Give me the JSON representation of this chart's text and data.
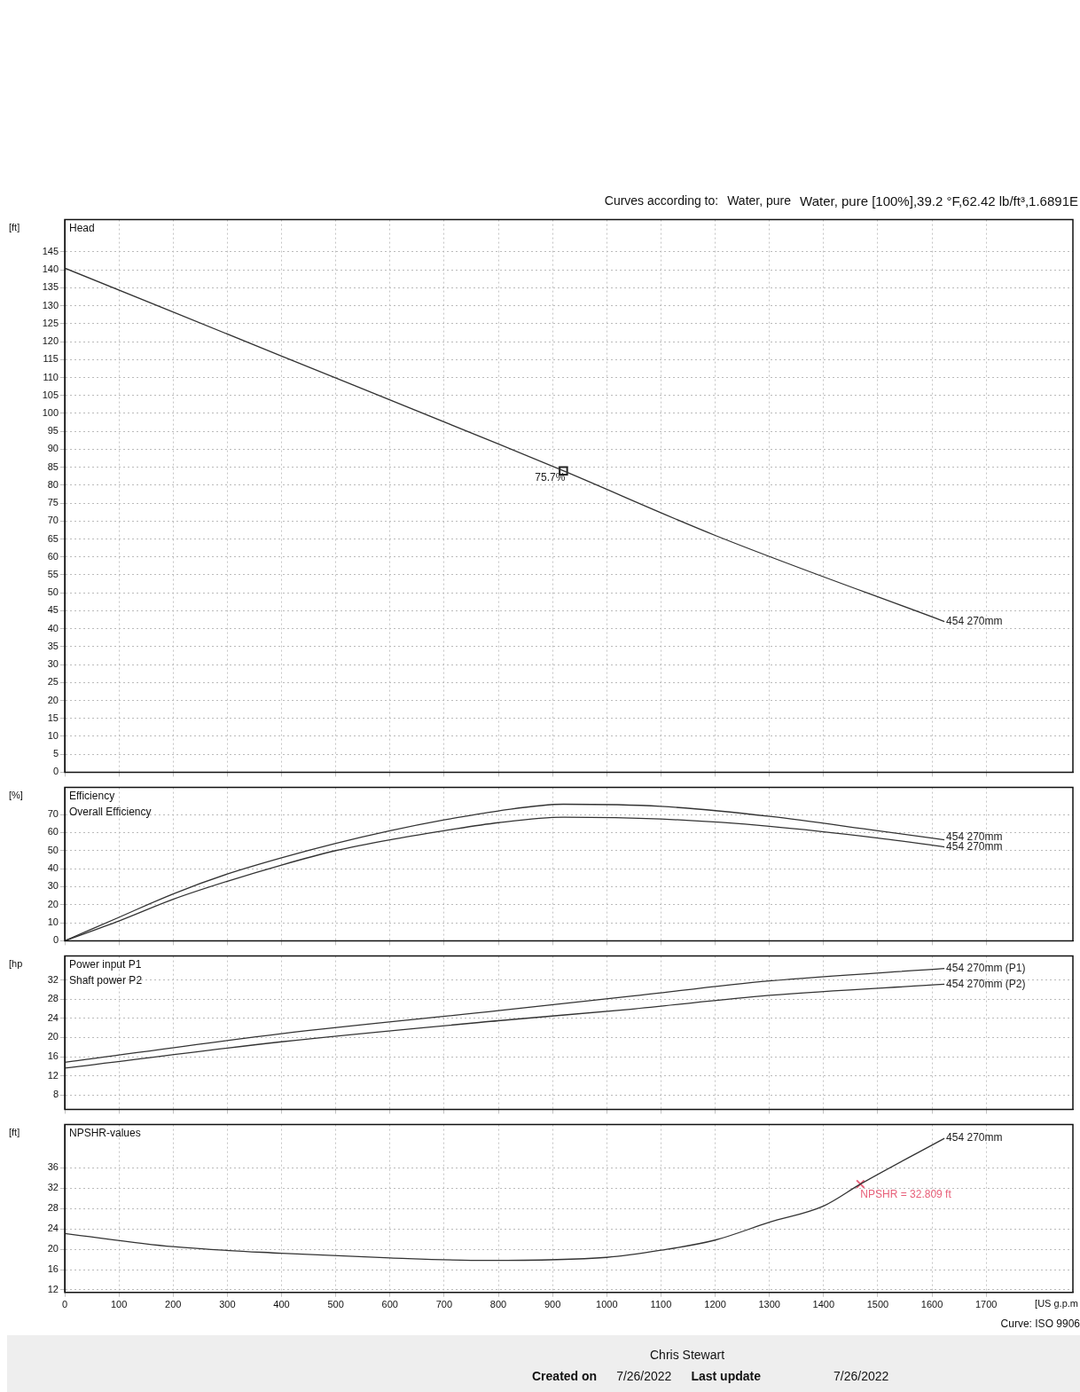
{
  "chart_data": [
    {
      "type": "line",
      "title": "Head",
      "ylabel": "[ft]",
      "xlim": [
        0,
        1860
      ],
      "xticks": [
        0,
        100,
        200,
        300,
        400,
        500,
        600,
        700,
        800,
        900,
        1000,
        1100,
        1200,
        1300,
        1400,
        1500,
        1600,
        1700
      ],
      "ylim": [
        0,
        154
      ],
      "yticks": [
        0,
        5,
        10,
        15,
        20,
        25,
        30,
        35,
        40,
        45,
        50,
        55,
        60,
        65,
        70,
        75,
        80,
        85,
        90,
        95,
        100,
        105,
        110,
        115,
        120,
        125,
        130,
        135,
        140,
        145
      ],
      "grid": true,
      "tick_labels": "y",
      "legend": false,
      "series": [
        {
          "name": "454 270mm",
          "color": "#333333",
          "x": [
            0,
            400,
            800,
            920,
            1200,
            1623
          ],
          "values": [
            140.5,
            116,
            91.5,
            84,
            66,
            42
          ]
        },
        {
          "type": "scatter",
          "marker": "square",
          "color": "#222222",
          "x": [
            920
          ],
          "values": [
            84
          ]
        }
      ],
      "annotations": [
        "Curves according to:",
        "Water, pure",
        "Water, pure [100%],39.2 °F,62.42 lb/ft³,1.6891E",
        {
          "text": "75.7%",
          "x": 920,
          "y": 84
        }
      ]
    },
    {
      "type": "line",
      "title": "Efficiency",
      "subtitle": "Overall Efficiency",
      "ylabel": "[%]",
      "xlim": [
        0,
        1860
      ],
      "xticks": [
        0,
        100,
        200,
        300,
        400,
        500,
        600,
        700,
        800,
        900,
        1000,
        1100,
        1200,
        1300,
        1400,
        1500,
        1600,
        1700
      ],
      "ylim": [
        0,
        85
      ],
      "yticks": [
        0,
        10,
        20,
        30,
        40,
        50,
        60,
        70
      ],
      "grid": true,
      "tick_labels": "y",
      "legend": false,
      "series": [
        {
          "name": "454 270mm",
          "color": "#333333",
          "x": [
            0,
            100,
            200,
            300,
            400,
            500,
            600,
            700,
            800,
            920,
            1100,
            1300,
            1500,
            1623
          ],
          "values": [
            0,
            13,
            26,
            37,
            46,
            54,
            61,
            67,
            72,
            75.7,
            74.5,
            69,
            61,
            56
          ]
        },
        {
          "name": "454 270mm",
          "color": "#333333",
          "x": [
            0,
            100,
            200,
            300,
            400,
            500,
            600,
            700,
            800,
            920,
            1100,
            1300,
            1500,
            1623
          ],
          "values": [
            0,
            11,
            23,
            33,
            42,
            50,
            56,
            61,
            65.5,
            68.5,
            67.5,
            63.5,
            57,
            52
          ]
        }
      ]
    },
    {
      "type": "line",
      "title": "Power input P1",
      "subtitle": "Shaft power P2",
      "ylabel": "[hp",
      "xlim": [
        0,
        1860
      ],
      "xticks": [
        0,
        100,
        200,
        300,
        400,
        500,
        600,
        700,
        800,
        900,
        1000,
        1100,
        1200,
        1300,
        1400,
        1500,
        1600,
        1700
      ],
      "ylim": [
        5,
        37
      ],
      "yticks": [
        8,
        12,
        16,
        20,
        24,
        28,
        32
      ],
      "grid": true,
      "tick_labels": "y",
      "legend": false,
      "series": [
        {
          "name": "454 270mm (P1)",
          "color": "#333333",
          "x": [
            0,
            400,
            800,
            1044,
            1300,
            1623
          ],
          "values": [
            14.8,
            20.8,
            25.6,
            28.6,
            31.8,
            34.4
          ]
        },
        {
          "name": "454 270mm (P2)",
          "color": "#333333",
          "x": [
            0,
            400,
            800,
            1044,
            1300,
            1623
          ],
          "values": [
            13.6,
            19.1,
            23.5,
            25.9,
            28.8,
            31.1
          ]
        }
      ]
    },
    {
      "type": "line",
      "title": "NPSHR-values",
      "ylabel": "[ft]",
      "xlabel": "[US g.p.m",
      "xlim": [
        0,
        1860
      ],
      "xticks": [
        0,
        100,
        200,
        300,
        400,
        500,
        600,
        700,
        800,
        900,
        1000,
        1100,
        1200,
        1300,
        1400,
        1500,
        1600,
        1700
      ],
      "ylim": [
        11.5,
        44.5
      ],
      "yticks": [
        12,
        16,
        20,
        24,
        28,
        32,
        36
      ],
      "grid": true,
      "legend": false,
      "series": [
        {
          "name": "454 270mm",
          "color": "#333333",
          "x": [
            0,
            200,
            400,
            600,
            780,
            1000,
            1100,
            1200,
            1300,
            1400,
            1468,
            1623
          ],
          "values": [
            23.1,
            20.5,
            19.2,
            18.3,
            17.8,
            18.4,
            19.8,
            21.8,
            25.3,
            28.5,
            32.809,
            41.8
          ]
        },
        {
          "type": "scatter",
          "marker": "cross",
          "color": "#e8607a",
          "x": [
            1468
          ],
          "values": [
            32.809
          ]
        }
      ],
      "annotations": [
        {
          "text": "NPSHR = 32.809 ft",
          "x": 1468,
          "y": 32.809
        },
        "Curve: ISO 9906",
        "Chris Stewart",
        "Created on",
        "7/26/2022",
        "Last update",
        "7/26/2022"
      ]
    }
  ]
}
